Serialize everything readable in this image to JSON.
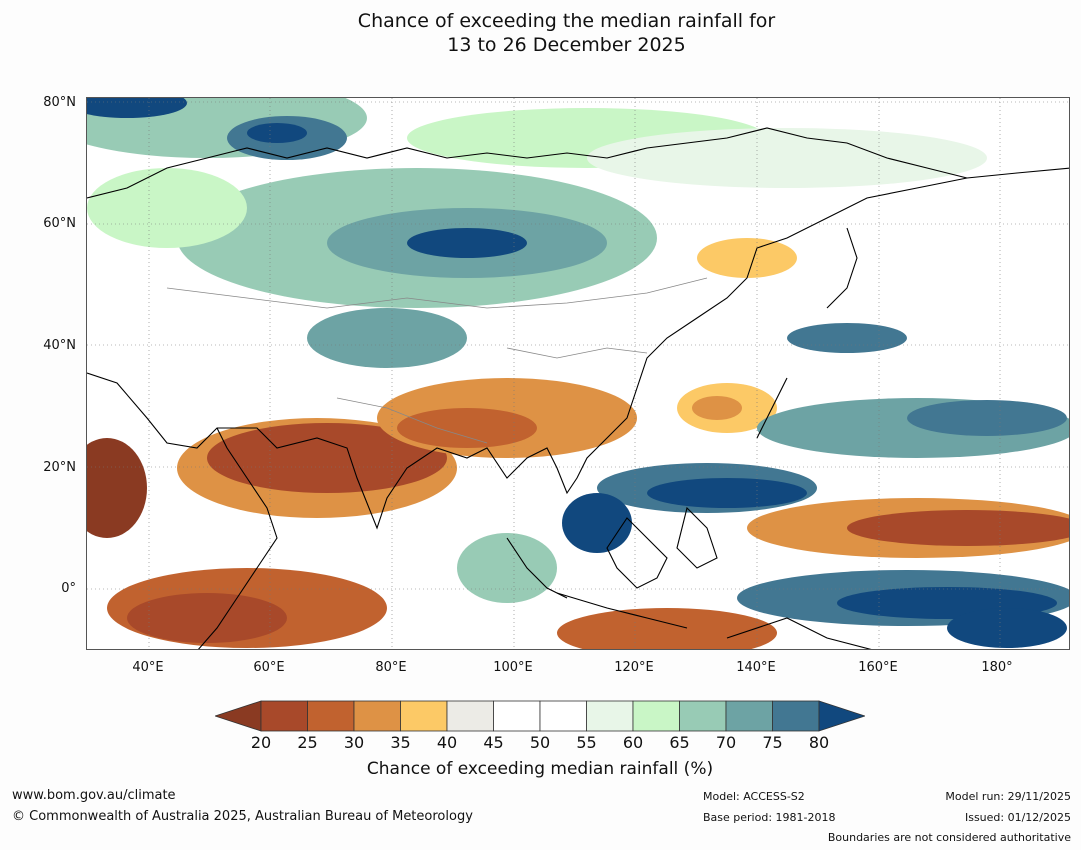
{
  "title": {
    "line1": "Chance of exceeding the median rainfall for",
    "line2": "13 to 26 December 2025"
  },
  "map": {
    "lat_labels": [
      "80°N",
      "60°N",
      "40°N",
      "20°N",
      "0°"
    ],
    "lon_labels": [
      "40°E",
      "60°E",
      "80°E",
      "100°E",
      "120°E",
      "140°E",
      "160°E",
      "180°"
    ]
  },
  "colorbar": {
    "ticks": [
      "20",
      "25",
      "30",
      "35",
      "40",
      "45",
      "50",
      "55",
      "60",
      "65",
      "70",
      "75",
      "80"
    ],
    "colors": [
      "#a8492a",
      "#c1622f",
      "#de9245",
      "#fcc966",
      "#ecebe6",
      "#ffffff",
      "#ffffff",
      "#e8f6e8",
      "#c9f6c6",
      "#98cbb5",
      "#6da3a4",
      "#427792"
    ],
    "under_color": "#8a3a22",
    "over_color": "#11487e",
    "label": "Chance of exceeding median rainfall (%)"
  },
  "footer": {
    "website": "www.bom.gov.au/climate",
    "copyright": "© Commonwealth of Australia 2025, Australian Bureau of Meteorology",
    "model": "Model: ACCESS-S2",
    "base_period": "Base period: 1981-2018",
    "model_run": "Model run: 29/11/2025",
    "issued": "Issued: 01/12/2025",
    "disclaimer": "Boundaries are not considered authoritative"
  }
}
